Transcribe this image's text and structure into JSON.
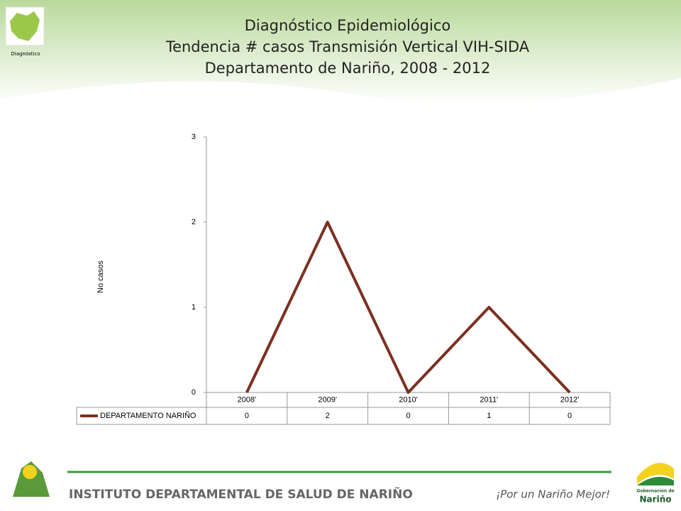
{
  "header": {
    "section": "Diagnóstico",
    "title_lines": [
      "Diagnóstico Epidemiológico",
      "Tendencia # casos Transmisión Vertical VIH-SIDA",
      "Departamento de Nariño,  2008 - 2012"
    ]
  },
  "chart_data": {
    "type": "line",
    "y_label": "No casos",
    "categories": [
      "2008'",
      "2009'",
      "2010'",
      "2011'",
      "2012'"
    ],
    "series": [
      {
        "name": "DEPARTAMENTO NARIÑO",
        "color": "#7b3020",
        "values": [
          0,
          2,
          0,
          1,
          0
        ]
      }
    ],
    "ylim": [
      0,
      3
    ],
    "yticks": [
      0,
      1,
      2,
      3
    ],
    "grid": false,
    "data_table": true
  },
  "footer": {
    "institute": "INSTITUTO DEPARTAMENTAL DE SALUD DE NARIÑO",
    "slogan": "¡Por un Nariño Mejor!",
    "gov_logo_top": "Gobernación de",
    "gov_logo_bottom": "Nariño"
  }
}
